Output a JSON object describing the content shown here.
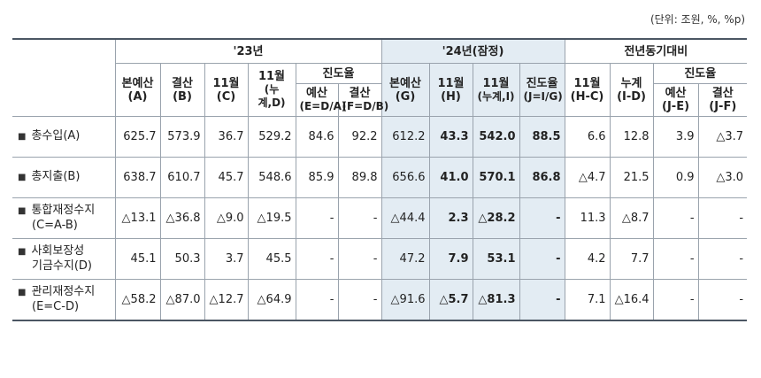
{
  "unit_note": "(단위: 조원, %, %p)",
  "header": {
    "group_23": "'23년",
    "group_24": "'24년(잠정)",
    "group_yoy": "전년동기대비",
    "c23_budget": [
      "본예산",
      "(A)"
    ],
    "c23_settle": [
      "결산",
      "(B)"
    ],
    "c23_nov": [
      "11월",
      "(C)"
    ],
    "c23_cum": [
      "11월",
      "(누계,D)"
    ],
    "c23_progress": "진도율",
    "c23_prog_budget": [
      "예산",
      "(E=D/A)"
    ],
    "c23_prog_settle": [
      "결산",
      "(F=D/B)"
    ],
    "c24_budget": [
      "본예산",
      "(G)"
    ],
    "c24_nov": [
      "11월",
      "(H)"
    ],
    "c24_cum": [
      "11월",
      "(누계,I)"
    ],
    "c24_progress": [
      "진도율",
      "(J=I/G)"
    ],
    "yoy_nov": [
      "11월",
      "(H-C)"
    ],
    "yoy_cum": [
      "누계",
      "(I-D)"
    ],
    "yoy_progress": "진도율",
    "yoy_prog_budget": [
      "예산",
      "(J-E)"
    ],
    "yoy_prog_settle": [
      "결산",
      "(J-F)"
    ]
  },
  "rows": [
    {
      "label": [
        "총수입(A)"
      ],
      "cells": [
        "625.7",
        "573.9",
        "36.7",
        "529.2",
        "84.6",
        "92.2",
        "612.2",
        "43.3",
        "542.0",
        "88.5",
        "6.6",
        "12.8",
        "3.9",
        "△3.7"
      ]
    },
    {
      "label": [
        "총지출(B)"
      ],
      "cells": [
        "638.7",
        "610.7",
        "45.7",
        "548.6",
        "85.9",
        "89.8",
        "656.6",
        "41.0",
        "570.1",
        "86.8",
        "△4.7",
        "21.5",
        "0.9",
        "△3.0"
      ]
    },
    {
      "label": [
        "통합재정수지",
        "(C=A-B)"
      ],
      "cells": [
        "△13.1",
        "△36.8",
        "△9.0",
        "△19.5",
        "-",
        "-",
        "△44.4",
        "2.3",
        "△28.2",
        "-",
        "11.3",
        "△8.7",
        "-",
        "-"
      ]
    },
    {
      "label": [
        "사회보장성",
        "기금수지(D)"
      ],
      "cells": [
        "45.1",
        "50.3",
        "3.7",
        "45.5",
        "-",
        "-",
        "47.2",
        "7.9",
        "53.1",
        "-",
        "4.2",
        "7.7",
        "-",
        "-"
      ]
    },
    {
      "label": [
        "관리재정수지",
        "(E=C-D)"
      ],
      "cells": [
        "△58.2",
        "△87.0",
        "△12.7",
        "△64.9",
        "-",
        "-",
        "△91.6",
        "△5.7",
        "△81.3",
        "-",
        "7.1",
        "△16.4",
        "-",
        "-"
      ]
    }
  ],
  "bullet": "■"
}
